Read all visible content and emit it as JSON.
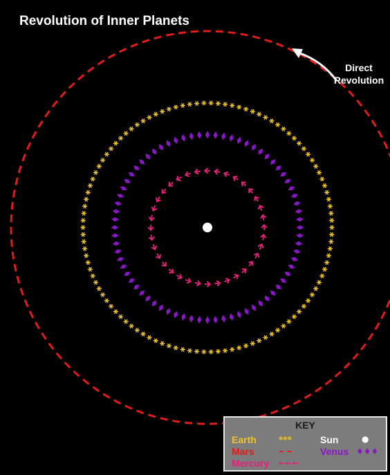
{
  "title": "Revolution of Inner Planets",
  "direction_label": [
    "Direct",
    "Revolution"
  ],
  "colors": {
    "background": "#000000",
    "sun": "#ffffff",
    "mercury": "#e6207a",
    "venus": "#8a16c8",
    "earth": "#f0c42c",
    "mars": "#e21b1b",
    "key_background": "#7c7c7c"
  },
  "orbits": [
    {
      "name": "Mercury",
      "marker": "arrow-chevron"
    },
    {
      "name": "Venus",
      "marker": "diamond"
    },
    {
      "name": "Earth",
      "marker": "asterisk"
    },
    {
      "name": "Mars",
      "marker": "dash"
    }
  ],
  "key": {
    "title": "KEY",
    "earth": {
      "label": "Earth",
      "symbol": "***"
    },
    "mars": {
      "label": "Mars",
      "symbol": "– –"
    },
    "mercury": {
      "label": "Mercury",
      "symbol": "←←←"
    },
    "sun": {
      "label": "Sun",
      "symbol": "●"
    },
    "venus": {
      "label": "Venus",
      "symbol": "♦♦♦"
    }
  }
}
